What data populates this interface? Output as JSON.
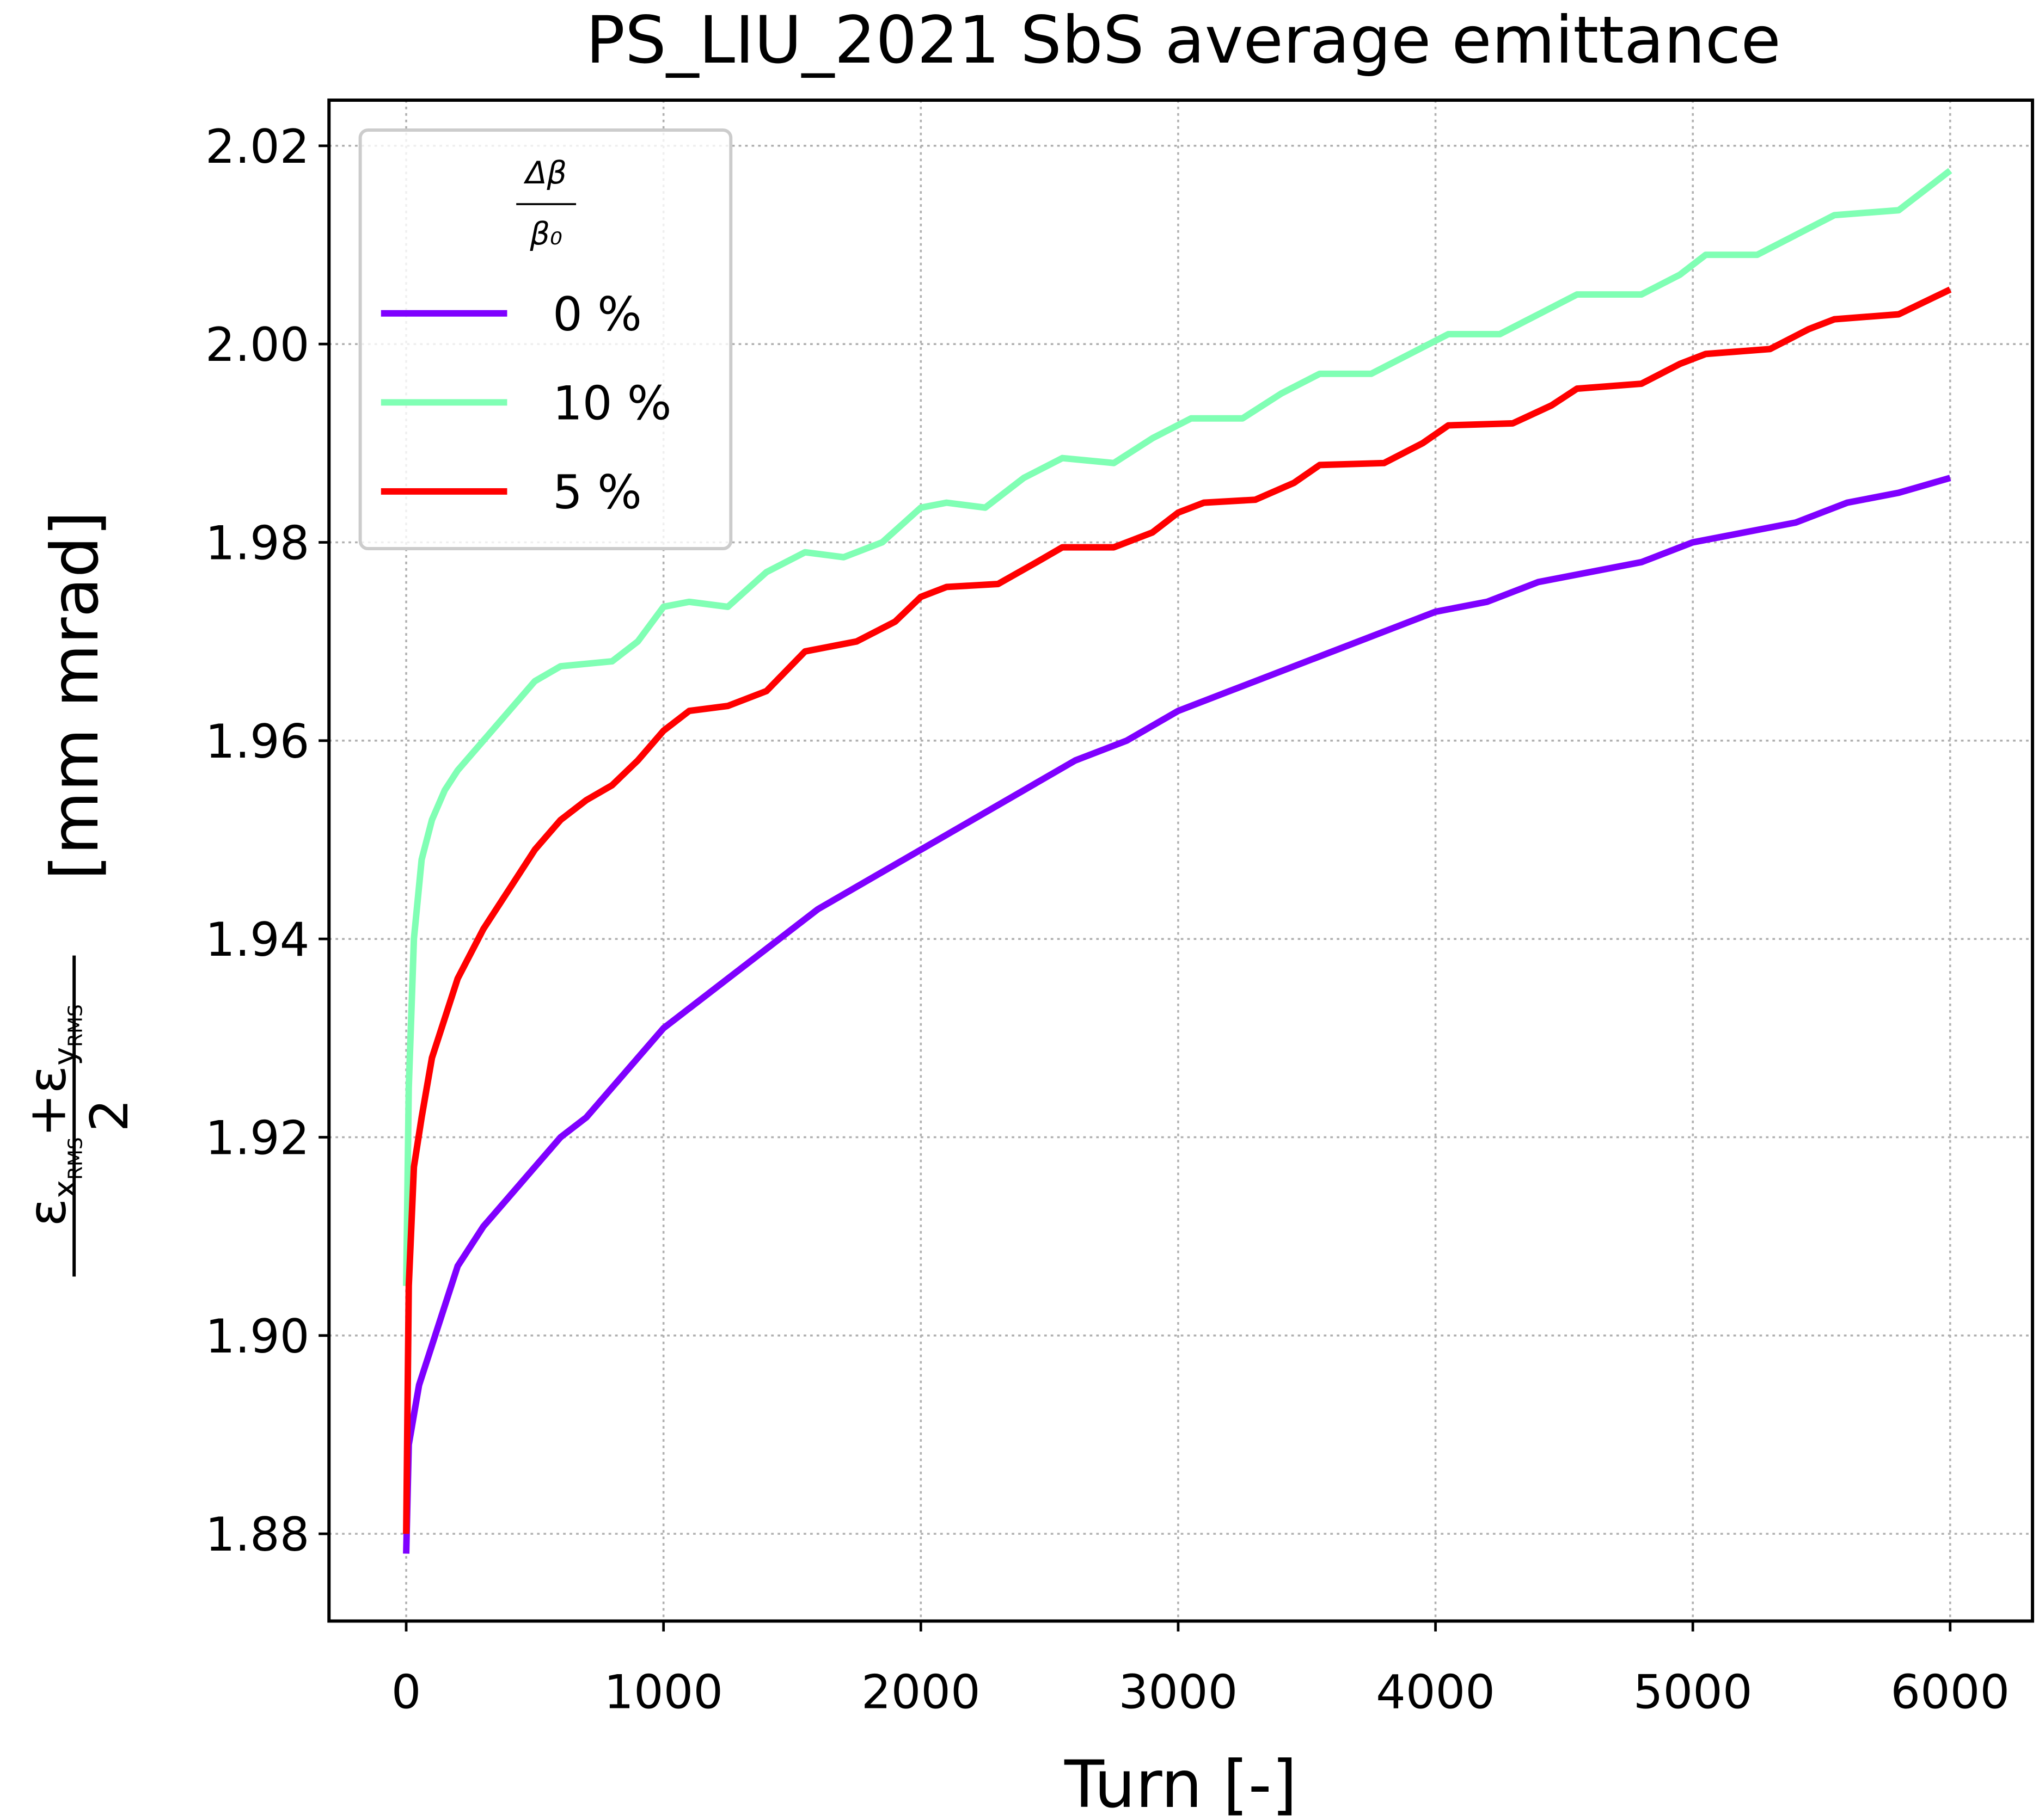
{
  "chart_data": {
    "type": "line",
    "title": "PS_LIU_2021 SbS average emittance",
    "xlabel": "Turn [-]",
    "ylabel": {
      "numerator": [
        "ε",
        "x",
        "RMS",
        "+",
        "ε",
        "y",
        "RMS"
      ],
      "denominator": "2",
      "unit": "[mm mrad]"
    },
    "legend_title": {
      "numerator": "Δβ",
      "denominator": "β₀"
    },
    "legend_loc": "upper left",
    "grid": true,
    "xlim": [
      -300,
      6320
    ],
    "ylim": [
      1.8712,
      2.0246
    ],
    "xticks": [
      0,
      1000,
      2000,
      3000,
      4000,
      5000,
      6000
    ],
    "yticks": [
      {
        "value": 1.88,
        "label": "1.88"
      },
      {
        "value": 1.9,
        "label": "1.90"
      },
      {
        "value": 1.92,
        "label": "1.92"
      },
      {
        "value": 1.94,
        "label": "1.94"
      },
      {
        "value": 1.96,
        "label": "1.96"
      },
      {
        "value": 1.98,
        "label": "1.98"
      },
      {
        "value": 2.0,
        "label": "2.00"
      },
      {
        "value": 2.02,
        "label": "2.02"
      }
    ],
    "series": [
      {
        "name": "0 %",
        "color": "#7f00ff",
        "x": [
          0,
          10,
          50,
          100,
          150,
          200,
          300,
          400,
          500,
          600,
          700,
          800,
          1000,
          1200,
          1400,
          1600,
          1800,
          2000,
          2200,
          2400,
          2600,
          2800,
          3000,
          3200,
          3400,
          3600,
          3800,
          4000,
          4200,
          4400,
          4600,
          4800,
          5000,
          5200,
          5400,
          5600,
          5800,
          6000
        ],
        "values": [
          1.878,
          1.889,
          1.895,
          1.899,
          1.903,
          1.907,
          1.911,
          1.914,
          1.917,
          1.92,
          1.922,
          1.925,
          1.931,
          1.935,
          1.939,
          1.943,
          1.946,
          1.949,
          1.952,
          1.955,
          1.958,
          1.96,
          1.963,
          1.965,
          1.967,
          1.969,
          1.971,
          1.973,
          1.974,
          1.976,
          1.977,
          1.978,
          1.98,
          1.981,
          1.982,
          1.984,
          1.985,
          1.9865
        ]
      },
      {
        "name": "10 %",
        "color": "#80ffb4",
        "x": [
          0,
          10,
          30,
          60,
          100,
          150,
          200,
          300,
          400,
          500,
          600,
          800,
          900,
          1000,
          1100,
          1250,
          1400,
          1550,
          1700,
          1850,
          2000,
          2100,
          2250,
          2400,
          2550,
          2750,
          2900,
          3050,
          3250,
          3400,
          3550,
          3750,
          3900,
          4050,
          4250,
          4400,
          4550,
          4800,
          4950,
          5050,
          5250,
          5400,
          5550,
          5800,
          6000
        ],
        "values": [
          1.905,
          1.925,
          1.94,
          1.948,
          1.952,
          1.955,
          1.957,
          1.96,
          1.963,
          1.966,
          1.9675,
          1.968,
          1.97,
          1.9735,
          1.974,
          1.9735,
          1.977,
          1.979,
          1.9785,
          1.98,
          1.9835,
          1.984,
          1.9835,
          1.9865,
          1.9885,
          1.988,
          1.9905,
          1.9925,
          1.9925,
          1.995,
          1.997,
          1.997,
          1.999,
          2.001,
          2.001,
          2.003,
          2.005,
          2.005,
          2.007,
          2.009,
          2.009,
          2.011,
          2.013,
          2.0135,
          2.0175
        ]
      },
      {
        "name": "5 %",
        "color": "#ff0000",
        "x": [
          0,
          10,
          30,
          60,
          100,
          150,
          200,
          300,
          400,
          500,
          600,
          700,
          800,
          900,
          1000,
          1100,
          1250,
          1400,
          1550,
          1750,
          1900,
          2000,
          2100,
          2300,
          2450,
          2550,
          2750,
          2900,
          3000,
          3100,
          3300,
          3450,
          3550,
          3800,
          3950,
          4050,
          4300,
          4450,
          4550,
          4800,
          4950,
          5050,
          5300,
          5450,
          5550,
          5800,
          6000
        ],
        "values": [
          1.88,
          1.905,
          1.917,
          1.922,
          1.928,
          1.932,
          1.936,
          1.941,
          1.945,
          1.949,
          1.952,
          1.954,
          1.9555,
          1.958,
          1.961,
          1.963,
          1.9635,
          1.965,
          1.969,
          1.97,
          1.972,
          1.9745,
          1.9755,
          1.9758,
          1.978,
          1.9795,
          1.9795,
          1.981,
          1.983,
          1.984,
          1.9843,
          1.986,
          1.9878,
          1.988,
          1.99,
          1.9918,
          1.992,
          1.9938,
          1.9955,
          1.996,
          1.998,
          1.999,
          1.9995,
          2.0015,
          2.0025,
          2.003,
          2.0055
        ]
      }
    ]
  }
}
